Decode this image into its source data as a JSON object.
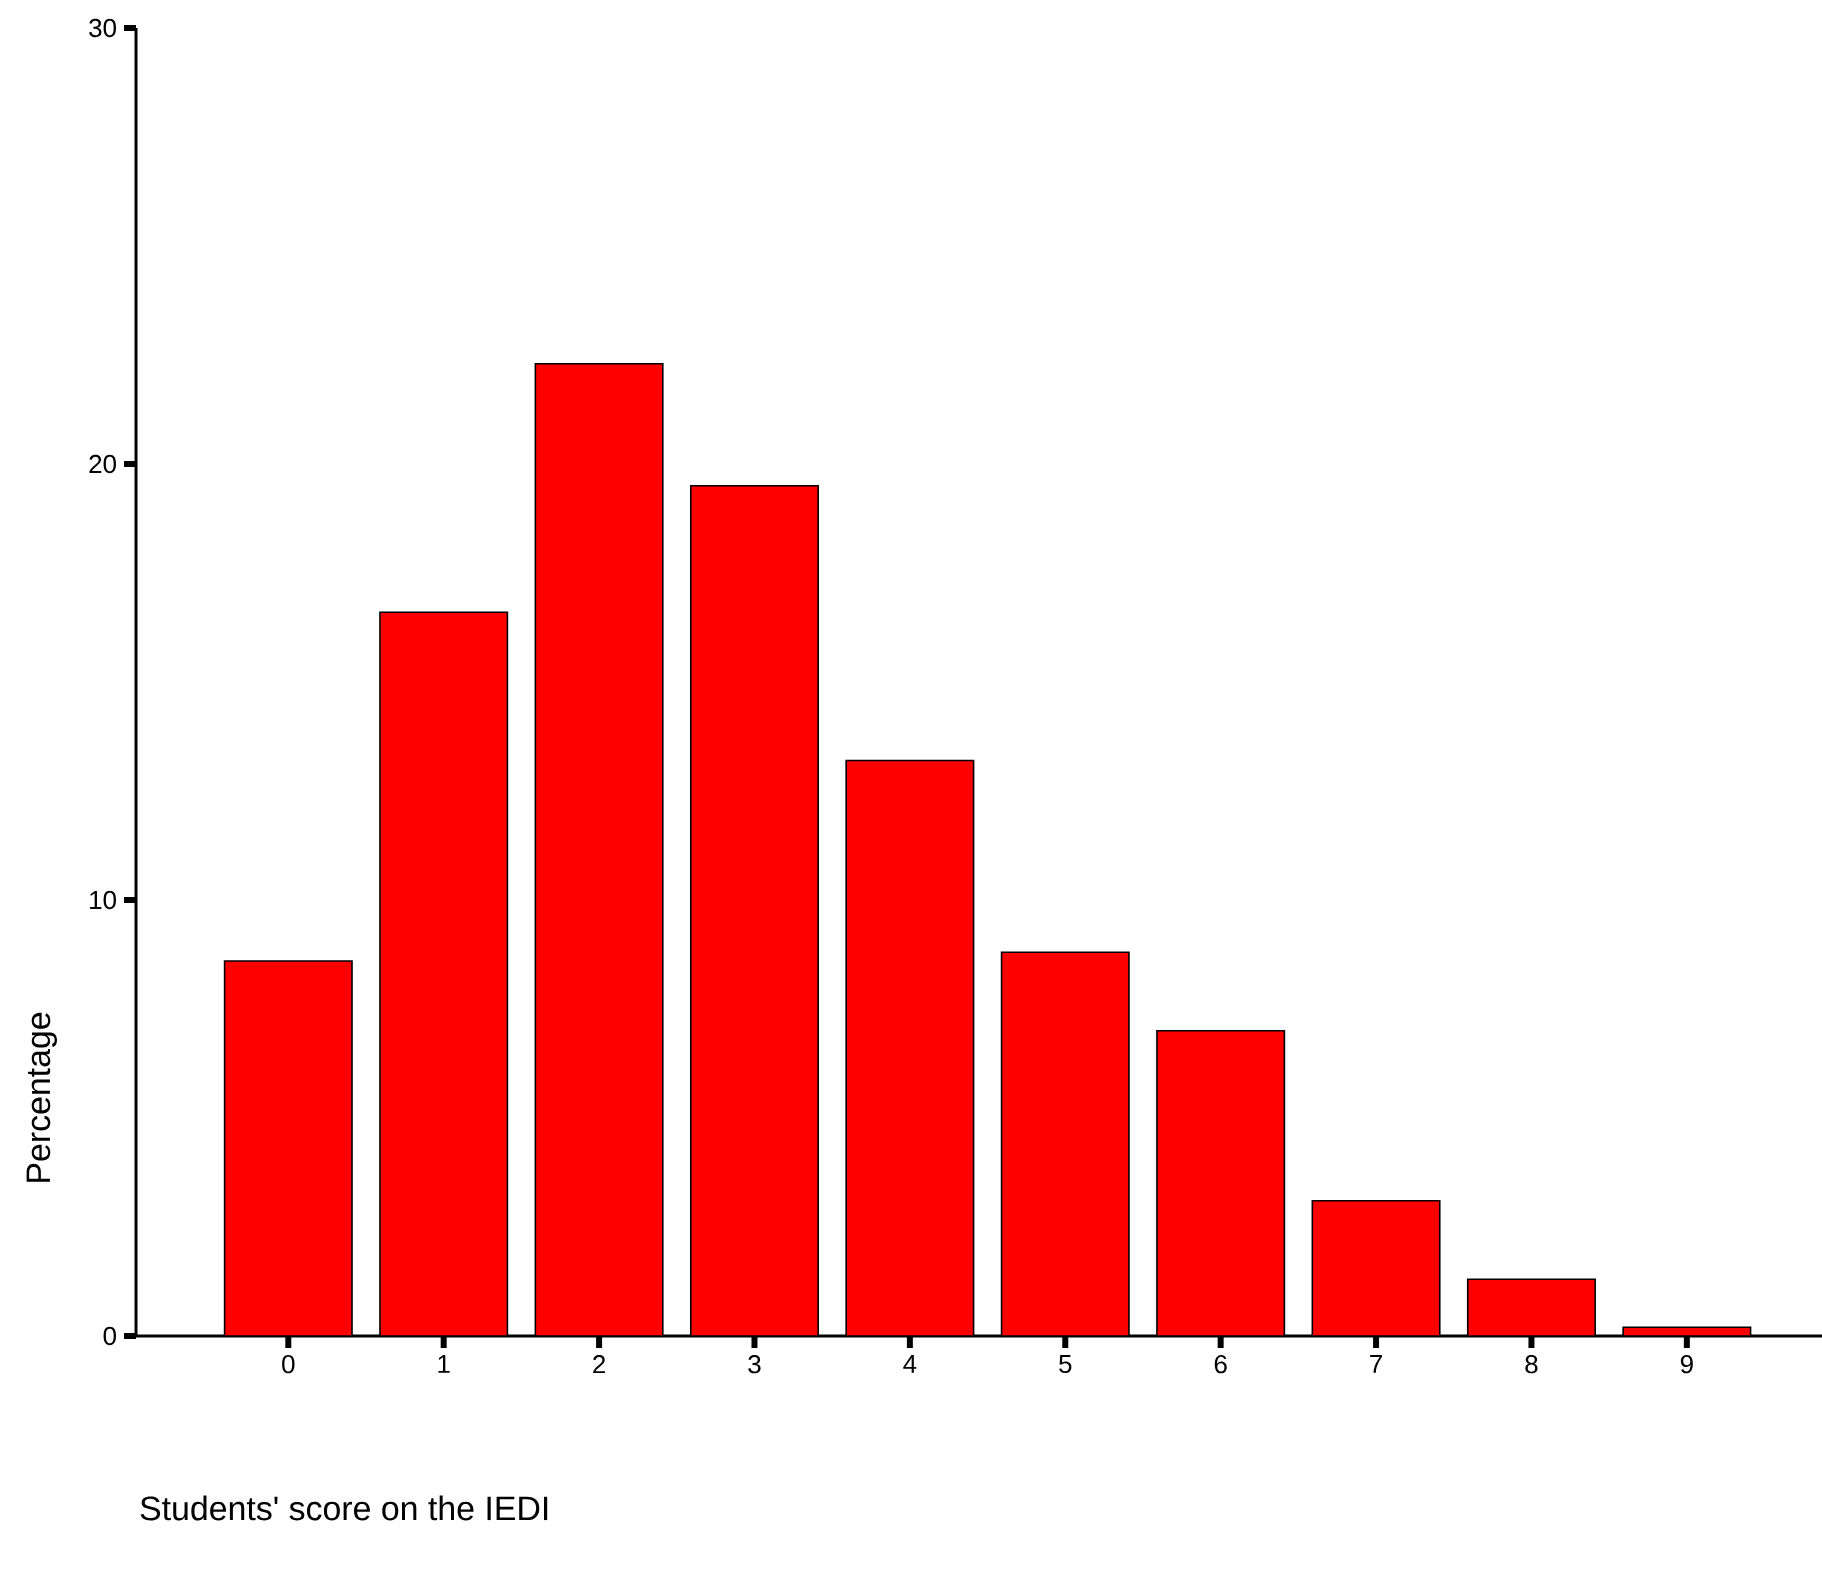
{
  "chart_data": {
    "type": "bar",
    "xlabel": "Students' score on the IEDI",
    "ylabel": "Percentage",
    "categories": [
      "0",
      "1",
      "2",
      "3",
      "4",
      "5",
      "6",
      "7",
      "8",
      "9"
    ],
    "values": [
      8.6,
      16.6,
      22.3,
      19.5,
      13.2,
      8.8,
      7.0,
      3.1,
      1.3,
      0.2
    ],
    "color": "#ff0000",
    "ylim": [
      0,
      30
    ],
    "yticks": [
      0,
      10,
      20,
      30
    ],
    "grid": false
  }
}
